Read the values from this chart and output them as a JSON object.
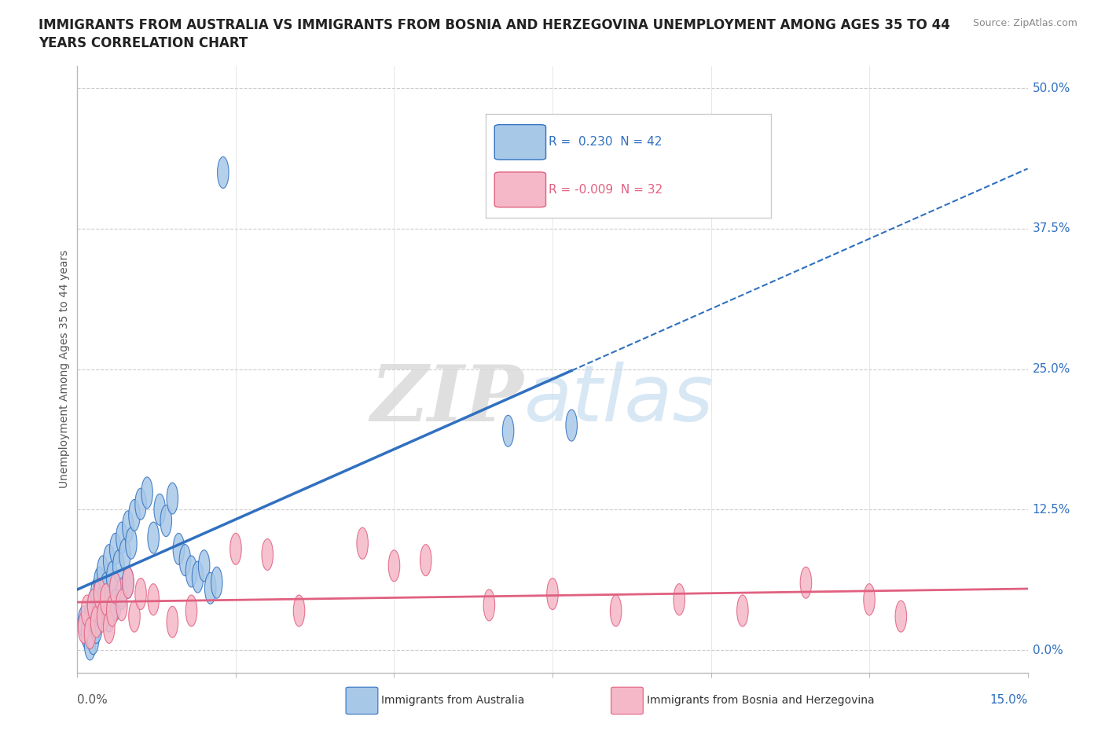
{
  "title_line1": "IMMIGRANTS FROM AUSTRALIA VS IMMIGRANTS FROM BOSNIA AND HERZEGOVINA UNEMPLOYMENT AMONG AGES 35 TO 44",
  "title_line2": "YEARS CORRELATION CHART",
  "source_text": "Source: ZipAtlas.com",
  "ylabel": "Unemployment Among Ages 35 to 44 years",
  "ytick_labels": [
    "0.0%",
    "12.5%",
    "25.0%",
    "37.5%",
    "50.0%"
  ],
  "ytick_values": [
    0.0,
    12.5,
    25.0,
    37.5,
    50.0
  ],
  "xlim": [
    0.0,
    15.0
  ],
  "ylim": [
    -2.0,
    52.0
  ],
  "watermark_zip": "ZIP",
  "watermark_atlas": "atlas",
  "legend_r_aus": " 0.230",
  "legend_n_aus": "42",
  "legend_r_bos": "-0.009",
  "legend_n_bos": "32",
  "legend_label_aus": "Immigrants from Australia",
  "legend_label_bos": "Immigrants from Bosnia and Herzegovina",
  "color_aus": "#a8c8e8",
  "color_bos": "#f5b8c8",
  "line_color_aus": "#3070c0",
  "line_color_bos": "#e06080",
  "aus_x": [
    0.1,
    0.15,
    0.2,
    0.2,
    0.25,
    0.25,
    0.3,
    0.3,
    0.35,
    0.35,
    0.4,
    0.4,
    0.45,
    0.5,
    0.5,
    0.55,
    0.6,
    0.6,
    0.65,
    0.7,
    0.7,
    0.75,
    0.8,
    0.8,
    0.85,
    0.9,
    1.0,
    1.1,
    1.2,
    1.3,
    1.4,
    1.5,
    1.6,
    1.7,
    1.8,
    1.9,
    2.0,
    2.1,
    2.2,
    2.3,
    6.8,
    7.8
  ],
  "aus_y": [
    2.5,
    1.5,
    3.0,
    0.5,
    4.0,
    1.0,
    5.0,
    2.0,
    6.0,
    3.5,
    7.0,
    4.5,
    5.5,
    8.0,
    3.0,
    6.5,
    9.0,
    4.0,
    7.5,
    10.0,
    5.0,
    8.5,
    11.0,
    6.0,
    9.5,
    12.0,
    13.0,
    14.0,
    10.0,
    12.5,
    11.5,
    13.5,
    9.0,
    8.0,
    7.0,
    6.5,
    7.5,
    5.5,
    6.0,
    42.5,
    19.5,
    20.0
  ],
  "bos_x": [
    0.1,
    0.15,
    0.2,
    0.25,
    0.3,
    0.35,
    0.4,
    0.45,
    0.5,
    0.55,
    0.6,
    0.7,
    0.8,
    0.9,
    1.0,
    1.2,
    1.5,
    1.8,
    2.5,
    3.0,
    3.5,
    4.5,
    5.0,
    5.5,
    6.5,
    7.5,
    8.5,
    9.5,
    10.5,
    11.5,
    12.5,
    13.0
  ],
  "bos_y": [
    2.0,
    3.5,
    1.5,
    4.0,
    2.5,
    5.0,
    3.0,
    4.5,
    2.0,
    3.5,
    5.5,
    4.0,
    6.0,
    3.0,
    5.0,
    4.5,
    2.5,
    3.5,
    9.0,
    8.5,
    3.5,
    9.5,
    7.5,
    8.0,
    4.0,
    5.0,
    3.5,
    4.5,
    3.5,
    6.0,
    4.5,
    3.0
  ]
}
